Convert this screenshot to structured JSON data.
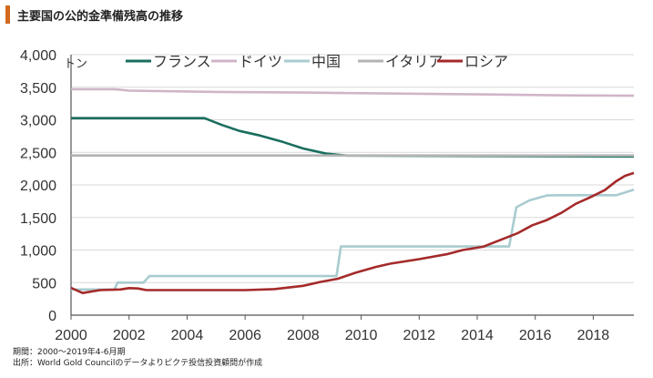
{
  "title": "主要国の公的金準備残高の推移",
  "notes": {
    "period": "期間：2000～2019年4-6月期",
    "source": "出所：World Gold Councilのデータよりピクテ投信投資顧問が作成"
  },
  "chart_data": {
    "type": "line",
    "title": "主要国の公的金準備残高の推移",
    "ylabel": "トン",
    "xlabel": "",
    "xlim": [
      2000,
      2019.4
    ],
    "ylim": [
      0,
      4000
    ],
    "y_ticks": [
      0,
      500,
      1000,
      1500,
      2000,
      2500,
      3000,
      3500,
      4000
    ],
    "y_tick_labels": [
      "0",
      "500",
      "1,000",
      "1,500",
      "2,000",
      "2,500",
      "3,000",
      "3,500",
      "4,000"
    ],
    "x_ticks": [
      2000,
      2002,
      2004,
      2006,
      2008,
      2010,
      2012,
      2014,
      2016,
      2018
    ],
    "x_tick_labels": [
      "2000",
      "2002",
      "2004",
      "2006",
      "2008",
      "2010",
      "2012",
      "2014",
      "2016",
      "2018"
    ],
    "grid": "horizontal",
    "legend_position": "top",
    "series": [
      {
        "name": "フランス",
        "color": "#1a6e5e",
        "points": [
          [
            2000,
            3025
          ],
          [
            2004.6,
            3025
          ],
          [
            2005.2,
            2920
          ],
          [
            2005.8,
            2830
          ],
          [
            2006.5,
            2760
          ],
          [
            2007.3,
            2660
          ],
          [
            2008,
            2560
          ],
          [
            2008.8,
            2480
          ],
          [
            2009.5,
            2450
          ],
          [
            2019.4,
            2436
          ]
        ]
      },
      {
        "name": "ドイツ",
        "color": "#d0b5c8",
        "points": [
          [
            2000,
            3468
          ],
          [
            2001.5,
            3468
          ],
          [
            2002,
            3448
          ],
          [
            2005,
            3428
          ],
          [
            2008,
            3418
          ],
          [
            2010,
            3408
          ],
          [
            2014,
            3390
          ],
          [
            2017,
            3375
          ],
          [
            2019.4,
            3369
          ]
        ]
      },
      {
        "name": "中国",
        "color": "#a9ccd0",
        "points": [
          [
            2000,
            395
          ],
          [
            2001.5,
            395
          ],
          [
            2001.6,
            500
          ],
          [
            2002.5,
            500
          ],
          [
            2002.7,
            600
          ],
          [
            2009.15,
            600
          ],
          [
            2009.3,
            1054
          ],
          [
            2015.1,
            1054
          ],
          [
            2015.35,
            1658
          ],
          [
            2015.8,
            1762
          ],
          [
            2016.4,
            1838
          ],
          [
            2016.8,
            1842
          ],
          [
            2018.8,
            1842
          ],
          [
            2019.4,
            1926
          ]
        ]
      },
      {
        "name": "イタリア",
        "color": "#b3b3b3",
        "points": [
          [
            2000,
            2452
          ],
          [
            2019.4,
            2452
          ]
        ]
      },
      {
        "name": "ロシア",
        "color": "#a52a2a",
        "points": [
          [
            2000,
            420
          ],
          [
            2000.4,
            340
          ],
          [
            2001,
            385
          ],
          [
            2001.7,
            395
          ],
          [
            2002,
            415
          ],
          [
            2002.3,
            410
          ],
          [
            2002.6,
            385
          ],
          [
            2004,
            385
          ],
          [
            2006,
            385
          ],
          [
            2007,
            400
          ],
          [
            2008,
            450
          ],
          [
            2008.6,
            510
          ],
          [
            2009.2,
            560
          ],
          [
            2009.8,
            650
          ],
          [
            2010.5,
            740
          ],
          [
            2011,
            790
          ],
          [
            2012,
            860
          ],
          [
            2013,
            940
          ],
          [
            2013.5,
            1000
          ],
          [
            2014.2,
            1050
          ],
          [
            2014.6,
            1120
          ],
          [
            2015,
            1190
          ],
          [
            2015.4,
            1260
          ],
          [
            2015.9,
            1380
          ],
          [
            2016.4,
            1460
          ],
          [
            2016.9,
            1570
          ],
          [
            2017.4,
            1710
          ],
          [
            2017.9,
            1810
          ],
          [
            2018.4,
            1920
          ],
          [
            2018.8,
            2060
          ],
          [
            2019.1,
            2140
          ],
          [
            2019.4,
            2183
          ]
        ]
      }
    ]
  }
}
